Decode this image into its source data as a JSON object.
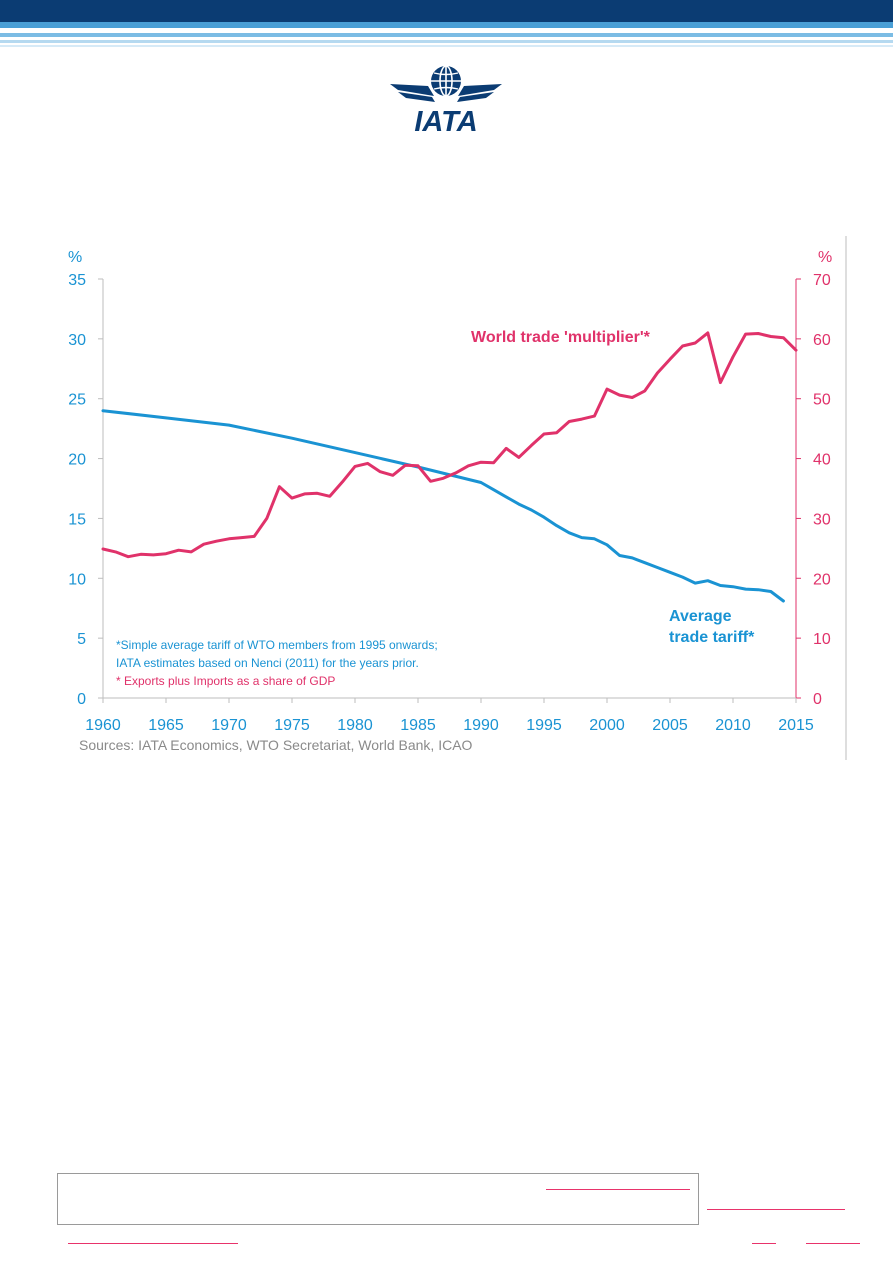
{
  "brand": {
    "logo_text": "IATA",
    "primary_color": "#003a70"
  },
  "chart_data": {
    "type": "line",
    "title": "",
    "x": {
      "min": 1960,
      "max": 2015,
      "ticks": [
        "1960",
        "1965",
        "1970",
        "1975",
        "1980",
        "1985",
        "1990",
        "1995",
        "2000",
        "2005",
        "2010",
        "2015"
      ]
    },
    "y_left": {
      "unit_label": "%",
      "range": [
        0,
        35
      ],
      "ticks": [
        "0",
        "5",
        "10",
        "15",
        "20",
        "25",
        "30",
        "35"
      ],
      "color": "#1a93d3"
    },
    "y_right": {
      "unit_label": "%",
      "range": [
        0,
        70
      ],
      "ticks": [
        "0",
        "10",
        "20",
        "30",
        "40",
        "50",
        "60",
        "70"
      ],
      "color": "#e0326a"
    },
    "grid": false,
    "series": [
      {
        "name_lines": [
          "Average",
          "trade tariff*"
        ],
        "axis": "left",
        "color": "#1a93d3",
        "x": [
          1960,
          1965,
          1970,
          1975,
          1980,
          1985,
          1990,
          1991,
          1992,
          1993,
          1994,
          1995,
          1996,
          1997,
          1998,
          1999,
          2000,
          2001,
          2002,
          2003,
          2004,
          2005,
          2006,
          2007,
          2008,
          2009,
          2010,
          2011,
          2012,
          2013,
          2014
        ],
        "values": [
          24.0,
          23.4,
          22.8,
          21.7,
          20.5,
          19.3,
          18.0,
          17.4,
          16.8,
          16.2,
          15.7,
          15.1,
          14.4,
          13.8,
          13.4,
          13.3,
          12.8,
          11.9,
          11.7,
          11.3,
          10.9,
          10.5,
          10.1,
          9.6,
          9.8,
          9.4,
          9.3,
          9.1,
          9.05,
          8.9,
          8.1
        ]
      },
      {
        "name": "World trade 'multiplier'*",
        "axis": "right",
        "color": "#e0326a",
        "x": [
          1960,
          1961,
          1962,
          1963,
          1964,
          1965,
          1966,
          1967,
          1968,
          1969,
          1970,
          1971,
          1972,
          1973,
          1974,
          1975,
          1976,
          1977,
          1978,
          1979,
          1980,
          1981,
          1982,
          1983,
          1984,
          1985,
          1986,
          1987,
          1988,
          1989,
          1990,
          1991,
          1992,
          1993,
          1994,
          1995,
          1996,
          1997,
          1998,
          1999,
          2000,
          2001,
          2002,
          2003,
          2004,
          2005,
          2006,
          2007,
          2008,
          2009,
          2010,
          2011,
          2012,
          2013,
          2014,
          2015
        ],
        "values": [
          24.9,
          24.4,
          23.6,
          24.0,
          23.9,
          24.1,
          24.7,
          24.4,
          25.7,
          26.2,
          26.6,
          26.8,
          27.0,
          30.0,
          35.3,
          33.4,
          34.1,
          34.2,
          33.7,
          36.1,
          38.7,
          39.2,
          37.8,
          37.2,
          38.9,
          38.8,
          36.2,
          36.7,
          37.6,
          38.8,
          39.4,
          39.3,
          41.7,
          40.2,
          42.2,
          44.1,
          44.3,
          46.2,
          46.6,
          47.1,
          51.6,
          50.6,
          50.2,
          51.3,
          54.3,
          56.6,
          58.8,
          59.3,
          61.0,
          52.7,
          57.0,
          60.8,
          60.9,
          60.4,
          60.2,
          58.1
        ]
      }
    ],
    "footnotes": [
      {
        "text": "*Simple average tariff of WTO members from 1995 onwards;",
        "color": "#1a93d3"
      },
      {
        "text": "IATA estimates based on Nenci (2011) for the years prior.",
        "color": "#1a93d3"
      },
      {
        "text": "* Exports plus Imports as a share of GDP",
        "color": "#e0326a"
      }
    ],
    "source": "Sources: IATA Economics, WTO Secretariat, World Bank, ICAO"
  }
}
